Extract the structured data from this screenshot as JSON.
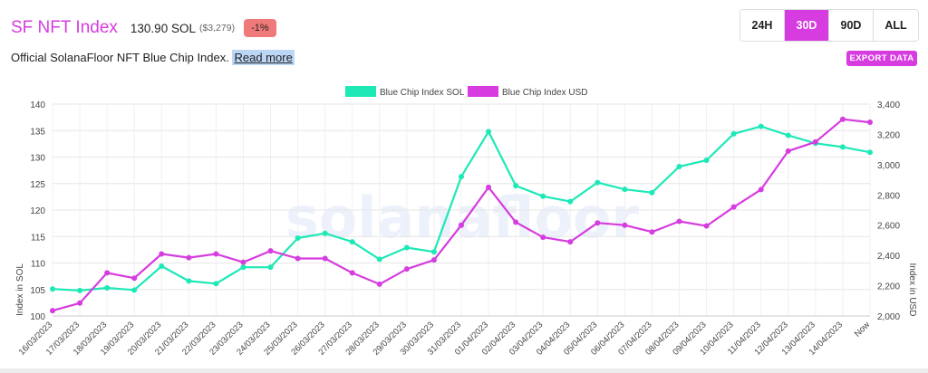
{
  "header": {
    "title": "SF NFT Index",
    "price": "130.90 SOL",
    "price_usd": "($3,279)",
    "change": "-1%",
    "description": "Official SolanaFloor NFT Blue Chip Index.",
    "read_more": "Read more"
  },
  "ranges": [
    {
      "label": "24H",
      "active": false
    },
    {
      "label": "30D",
      "active": true
    },
    {
      "label": "90D",
      "active": false
    },
    {
      "label": "ALL",
      "active": false
    }
  ],
  "export_label": "EXPORT DATA",
  "watermark": "solanafloor",
  "colors": {
    "accent": "#d63ce0",
    "sol_series": "#1de9b6",
    "usd_series": "#d63ce0",
    "badge": "#f07a7a"
  },
  "chart_data": {
    "type": "line",
    "x": [
      "16/03/2023",
      "17/03/2023",
      "18/03/2023",
      "19/03/2023",
      "20/03/2023",
      "21/03/2023",
      "22/03/2023",
      "23/03/2023",
      "24/03/2023",
      "25/03/2023",
      "26/03/2023",
      "27/03/2023",
      "28/03/2023",
      "29/03/2023",
      "30/03/2023",
      "31/03/2023",
      "01/04/2023",
      "02/04/2023",
      "03/04/2023",
      "04/04/2023",
      "05/04/2023",
      "06/04/2023",
      "07/04/2023",
      "08/04/2023",
      "09/04/2023",
      "10/04/2023",
      "11/04/2023",
      "12/04/2023",
      "13/04/2023",
      "14/04/2023",
      "Now"
    ],
    "series": [
      {
        "name": "Blue Chip Index SOL",
        "axis": "left",
        "values": [
          105.1,
          104.8,
          105.3,
          104.9,
          109.4,
          106.6,
          106.1,
          109.2,
          109.2,
          114.7,
          115.6,
          114.0,
          110.7,
          112.9,
          112.1,
          126.3,
          134.8,
          124.6,
          122.6,
          121.6,
          125.2,
          123.9,
          123.3,
          128.2,
          129.4,
          134.4,
          135.8,
          134.1,
          132.6,
          131.9,
          130.9
        ]
      },
      {
        "name": "Blue Chip Index USD",
        "axis": "right",
        "values": [
          2035,
          2085,
          2285,
          2250,
          2410,
          2385,
          2410,
          2355,
          2430,
          2380,
          2380,
          2285,
          2210,
          2310,
          2370,
          2600,
          2850,
          2620,
          2520,
          2490,
          2615,
          2600,
          2555,
          2625,
          2595,
          2720,
          2835,
          3090,
          3150,
          3300,
          3280
        ]
      }
    ],
    "yleft": {
      "label": "Index in SOL",
      "min": 100,
      "max": 140,
      "ticks": [
        100,
        105,
        110,
        115,
        120,
        125,
        130,
        135,
        140
      ]
    },
    "yright": {
      "label": "Index in USD",
      "min": 2000,
      "max": 3400,
      "ticks": [
        "2,000",
        "2,200",
        "2,400",
        "2,600",
        "2,800",
        "3,000",
        "3,200",
        "3,400"
      ]
    },
    "legend": "top-center",
    "grid": true
  }
}
